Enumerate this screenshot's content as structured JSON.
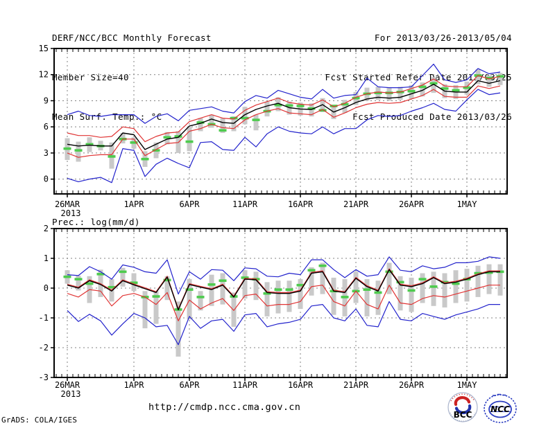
{
  "header": {
    "title": "DERF/NCC/BCC Monthly Forecast",
    "member_size": "Member Size=40",
    "for_range": "For 2013/03/26-2013/05/04",
    "fcst_started": "Fcst Started Refer Date 2013/03/25",
    "fcst_produced": "Fcst Produced Date 2013/03/26"
  },
  "footer": {
    "url": "http://cmdp.ncc.cma.gov.cn",
    "grads_credit": "GrADS: COLA/IGES",
    "logos": {
      "bcc_label": "BCC",
      "ncc_label": "NCC"
    }
  },
  "colors": {
    "ensemble_minmax": "#2222cc",
    "ensemble_spread_line": "#e03333",
    "ensemble_mean": "#000000",
    "observation_dash": "#4ecb4e",
    "spread_bar": "#c9c9c9",
    "grid": "#808080",
    "frame": "#000000"
  },
  "chart_data": [
    {
      "type": "line",
      "name": "temperature",
      "title": "Mean Surf. Temp.: °C",
      "ylim": [
        -1.7,
        15
      ],
      "yticks": [
        0,
        3,
        6,
        9,
        12,
        15
      ],
      "n_days": 40,
      "xticks": [
        {
          "day": 1,
          "label": "26MAR",
          "year": "2013"
        },
        {
          "day": 7,
          "label": "1APR"
        },
        {
          "day": 12,
          "label": "6APR"
        },
        {
          "day": 17,
          "label": "11APR"
        },
        {
          "day": 22,
          "label": "16APR"
        },
        {
          "day": 27,
          "label": "21APR"
        },
        {
          "day": 32,
          "label": "26APR"
        },
        {
          "day": 37,
          "label": "1MAY"
        }
      ],
      "series": [
        {
          "name": "ensemble-max",
          "color": "#2222cc",
          "width": 1.2,
          "values": [
            7.4,
            7.8,
            7.3,
            7.2,
            7.4,
            7.4,
            7.4,
            6.4,
            7.2,
            7.5,
            6.7,
            7.9,
            8.1,
            8.3,
            7.8,
            7.6,
            8.9,
            9.6,
            9.3,
            10.2,
            9.8,
            9.4,
            9.2,
            10.3,
            9.3,
            9.6,
            9.7,
            11.6,
            10.6,
            10.5,
            10.5,
            10.6,
            11.9,
            13.2,
            11.4,
            11.1,
            11.4,
            12.7,
            12.1,
            12.3
          ]
        },
        {
          "name": "upper-spread",
          "color": "#e03333",
          "width": 1.2,
          "values": [
            5.3,
            5.0,
            5.0,
            4.8,
            4.9,
            6.0,
            5.8,
            4.3,
            4.9,
            5.3,
            5.4,
            6.6,
            7.0,
            7.4,
            7.0,
            6.9,
            7.9,
            8.5,
            8.9,
            9.3,
            8.8,
            8.6,
            8.5,
            9.1,
            8.3,
            8.7,
            9.4,
            9.8,
            10.0,
            9.9,
            10.0,
            10.4,
            10.8,
            11.5,
            10.7,
            10.6,
            10.6,
            11.9,
            11.5,
            11.8
          ]
        },
        {
          "name": "ensemble-mean",
          "color": "#000000",
          "width": 1.4,
          "values": [
            4.0,
            3.8,
            3.9,
            3.8,
            3.8,
            5.3,
            5.1,
            3.4,
            4.0,
            4.6,
            4.8,
            6.1,
            6.4,
            6.9,
            6.5,
            6.4,
            7.4,
            8.0,
            8.4,
            8.7,
            8.2,
            8.05,
            8.0,
            8.55,
            7.7,
            8.2,
            8.8,
            9.2,
            9.4,
            9.3,
            9.4,
            9.8,
            10.2,
            10.9,
            10.1,
            10.0,
            10.0,
            11.3,
            11.0,
            11.3
          ]
        },
        {
          "name": "lower-spread",
          "color": "#e03333",
          "width": 1.2,
          "values": [
            3.0,
            2.5,
            2.7,
            2.8,
            2.8,
            4.6,
            4.6,
            2.7,
            3.4,
            4.1,
            4.2,
            5.5,
            5.8,
            6.3,
            5.9,
            5.8,
            6.8,
            7.4,
            7.8,
            8.1,
            7.6,
            7.5,
            7.4,
            8.0,
            7.1,
            7.6,
            8.2,
            8.6,
            8.8,
            8.7,
            8.8,
            9.2,
            9.6,
            10.3,
            9.5,
            9.4,
            9.4,
            10.7,
            10.4,
            10.7
          ]
        },
        {
          "name": "ensemble-min",
          "color": "#2222cc",
          "width": 1.2,
          "values": [
            0.1,
            -0.3,
            0.0,
            0.2,
            -0.4,
            3.5,
            3.3,
            0.3,
            1.7,
            2.4,
            1.8,
            1.3,
            4.2,
            4.3,
            3.4,
            3.3,
            4.8,
            3.7,
            5.2,
            6.0,
            5.5,
            5.3,
            5.2,
            6.0,
            5.2,
            5.8,
            5.8,
            6.8,
            7.3,
            7.2,
            7.3,
            7.8,
            8.2,
            8.7,
            8.0,
            7.8,
            9.1,
            10.3,
            9.7,
            9.9
          ]
        }
      ],
      "observation": {
        "name": "observation-dash",
        "color": "#4ecb4e",
        "values": [
          3.5,
          3.3,
          4.0,
          3.8,
          2.6,
          4.6,
          4.2,
          2.3,
          3.3,
          4.8,
          4.9,
          4.3,
          6.5,
          6.3,
          5.6,
          7.0,
          7.0,
          6.8,
          7.8,
          8.5,
          8.45,
          8.4,
          8.1,
          7.9,
          8.4,
          8.6,
          9.3,
          9.8,
          9.9,
          9.9,
          10.0,
          10.1,
          10.6,
          11.0,
          10.4,
          10.2,
          10.5,
          11.9,
          11.6,
          11.8
        ]
      },
      "spread_bars": {
        "color": "#c9c9c9",
        "ranges": [
          [
            2.2,
            4.7
          ],
          [
            2.0,
            4.3
          ],
          [
            3.1,
            4.8
          ],
          [
            3.3,
            4.4
          ],
          [
            1.2,
            4.2
          ],
          [
            4.1,
            5.3
          ],
          [
            3.5,
            4.8
          ],
          [
            1.4,
            3.2
          ],
          [
            2.4,
            4.2
          ],
          [
            4.0,
            5.4
          ],
          [
            3.0,
            5.5
          ],
          [
            3.2,
            6.0
          ],
          [
            5.5,
            7.0
          ],
          [
            5.9,
            7.4
          ],
          [
            5.3,
            7.0
          ],
          [
            5.5,
            7.2
          ],
          [
            6.3,
            8.3
          ],
          [
            5.6,
            7.4
          ],
          [
            7.2,
            8.9
          ],
          [
            7.8,
            9.4
          ],
          [
            7.4,
            8.9
          ],
          [
            7.3,
            8.8
          ],
          [
            7.2,
            8.7
          ],
          [
            7.7,
            9.3
          ],
          [
            6.9,
            8.5
          ],
          [
            7.6,
            9.1
          ],
          [
            8.5,
            10.0
          ],
          [
            9.0,
            10.5
          ],
          [
            9.1,
            10.6
          ],
          [
            9.0,
            10.5
          ],
          [
            9.1,
            10.6
          ],
          [
            9.2,
            10.8
          ],
          [
            9.5,
            11.1
          ],
          [
            9.9,
            11.7
          ],
          [
            9.3,
            10.9
          ],
          [
            9.2,
            10.8
          ],
          [
            9.7,
            11.2
          ],
          [
            10.9,
            12.6
          ],
          [
            10.6,
            11.9
          ],
          [
            10.8,
            12.2
          ]
        ]
      }
    },
    {
      "type": "line",
      "name": "precipitation",
      "title": "Prec.: log(mm/d)",
      "ylim": [
        -3,
        2
      ],
      "yticks": [
        -3,
        -2,
        -1,
        0,
        1,
        2
      ],
      "n_days": 40,
      "xticks": [
        {
          "day": 1,
          "label": "26MAR",
          "year": "2013"
        },
        {
          "day": 7,
          "label": "1APR"
        },
        {
          "day": 12,
          "label": "6APR"
        },
        {
          "day": 17,
          "label": "11APR"
        },
        {
          "day": 22,
          "label": "16APR"
        },
        {
          "day": 27,
          "label": "21APR"
        },
        {
          "day": 32,
          "label": "26APR"
        },
        {
          "day": 37,
          "label": "1MAY"
        }
      ],
      "series": [
        {
          "name": "ensemble-max",
          "color": "#2222cc",
          "width": 1.2,
          "values": [
            0.45,
            0.42,
            0.72,
            0.55,
            0.3,
            0.78,
            0.7,
            0.55,
            0.5,
            0.95,
            -0.2,
            0.55,
            0.3,
            0.62,
            0.6,
            0.25,
            0.68,
            0.65,
            0.4,
            0.38,
            0.5,
            0.45,
            0.95,
            0.95,
            0.62,
            0.35,
            0.62,
            0.4,
            0.45,
            1.05,
            0.6,
            0.55,
            0.75,
            0.65,
            0.7,
            0.85,
            0.85,
            0.9,
            1.05,
            1.0
          ]
        },
        {
          "name": "upper-spread",
          "color": "#e03333",
          "width": 1.2,
          "values": [
            0.13,
            0.03,
            0.28,
            0.15,
            -0.07,
            0.28,
            0.14,
            0.01,
            -0.12,
            0.4,
            -0.7,
            0.15,
            0.06,
            -0.02,
            0.13,
            -0.27,
            0.33,
            0.31,
            -0.12,
            -0.15,
            -0.15,
            -0.07,
            0.53,
            0.58,
            -0.07,
            -0.12,
            0.36,
            0.08,
            -0.07,
            0.65,
            0.13,
            0.08,
            0.18,
            0.38,
            0.18,
            0.23,
            0.33,
            0.48,
            0.58,
            0.58
          ]
        },
        {
          "name": "ensemble-mean",
          "color": "#000000",
          "width": 1.4,
          "values": [
            0.1,
            0.0,
            0.25,
            0.12,
            -0.1,
            0.25,
            0.11,
            -0.02,
            -0.15,
            0.37,
            -0.73,
            0.12,
            0.03,
            -0.05,
            0.1,
            -0.3,
            0.3,
            0.28,
            -0.15,
            -0.18,
            -0.18,
            -0.1,
            0.5,
            0.55,
            -0.1,
            -0.15,
            0.33,
            0.05,
            -0.1,
            0.62,
            0.1,
            0.05,
            0.15,
            0.35,
            0.15,
            0.2,
            0.3,
            0.45,
            0.55,
            0.55
          ]
        },
        {
          "name": "lower-spread",
          "color": "#e03333",
          "width": 1.2,
          "values": [
            -0.18,
            -0.3,
            -0.05,
            -0.1,
            -0.6,
            -0.25,
            -0.18,
            -0.3,
            -0.55,
            -0.15,
            -1.1,
            -0.4,
            -0.7,
            -0.5,
            -0.35,
            -0.75,
            -0.25,
            -0.2,
            -0.6,
            -0.55,
            -0.55,
            -0.45,
            0.05,
            0.1,
            -0.45,
            -0.6,
            -0.1,
            -0.55,
            -0.7,
            0.1,
            -0.5,
            -0.55,
            -0.35,
            -0.25,
            -0.3,
            -0.2,
            -0.1,
            0.0,
            0.1,
            0.1
          ]
        },
        {
          "name": "ensemble-min",
          "color": "#2222cc",
          "width": 1.2,
          "values": [
            -0.75,
            -1.12,
            -0.88,
            -1.1,
            -1.58,
            -1.2,
            -0.85,
            -1.0,
            -1.3,
            -1.25,
            -1.9,
            -0.95,
            -1.35,
            -1.1,
            -1.05,
            -1.45,
            -0.9,
            -0.85,
            -1.3,
            -1.2,
            -1.15,
            -1.05,
            -0.6,
            -0.55,
            -1.0,
            -1.1,
            -0.7,
            -1.25,
            -1.3,
            -0.45,
            -1.05,
            -1.1,
            -0.85,
            -0.95,
            -1.05,
            -0.9,
            -0.8,
            -0.7,
            -0.55,
            -0.55
          ]
        }
      ],
      "observation": {
        "name": "observation-dash",
        "color": "#4ecb4e",
        "values": [
          0.38,
          0.3,
          0.15,
          0.47,
          0.03,
          0.55,
          0.18,
          -0.3,
          -0.28,
          0.27,
          -0.72,
          -0.05,
          -0.3,
          0.12,
          0.25,
          -0.28,
          0.35,
          0.3,
          -0.18,
          -0.05,
          -0.05,
          0.1,
          0.6,
          0.75,
          -0.1,
          -0.3,
          -0.1,
          -0.05,
          -0.15,
          0.55,
          0.2,
          -0.08,
          0.3,
          0.05,
          0.2,
          0.15,
          0.3,
          0.5,
          0.52,
          0.55
        ]
      },
      "spread_bars": {
        "color": "#c9c9c9",
        "ranges": [
          [
            0.15,
            0.6
          ],
          [
            -0.08,
            0.42
          ],
          [
            -0.5,
            0.4
          ],
          [
            -0.3,
            0.62
          ],
          [
            -0.45,
            0.3
          ],
          [
            0.05,
            0.68
          ],
          [
            -0.1,
            0.5
          ],
          [
            -1.35,
            -0.1
          ],
          [
            -1.2,
            -0.1
          ],
          [
            -0.4,
            0.4
          ],
          [
            -2.3,
            -0.45
          ],
          [
            -1.05,
            0.3
          ],
          [
            -0.75,
            -0.1
          ],
          [
            -0.6,
            0.45
          ],
          [
            -0.55,
            0.5
          ],
          [
            -1.3,
            -0.15
          ],
          [
            -0.35,
            0.6
          ],
          [
            -0.4,
            0.55
          ],
          [
            -0.95,
            0.2
          ],
          [
            -0.85,
            0.25
          ],
          [
            -0.8,
            0.25
          ],
          [
            -0.7,
            0.3
          ],
          [
            -0.25,
            0.7
          ],
          [
            -0.2,
            0.85
          ],
          [
            -0.9,
            0.35
          ],
          [
            -0.95,
            0.3
          ],
          [
            -0.5,
            0.55
          ],
          [
            -0.95,
            0.3
          ],
          [
            -0.9,
            0.25
          ],
          [
            -0.2,
            0.85
          ],
          [
            -0.75,
            0.4
          ],
          [
            -0.8,
            0.35
          ],
          [
            -0.5,
            0.5
          ],
          [
            -0.6,
            0.55
          ],
          [
            -0.65,
            0.5
          ],
          [
            -0.5,
            0.6
          ],
          [
            -0.45,
            0.65
          ],
          [
            -0.3,
            0.75
          ],
          [
            -0.2,
            0.8
          ],
          [
            -0.25,
            0.8
          ]
        ]
      }
    }
  ]
}
